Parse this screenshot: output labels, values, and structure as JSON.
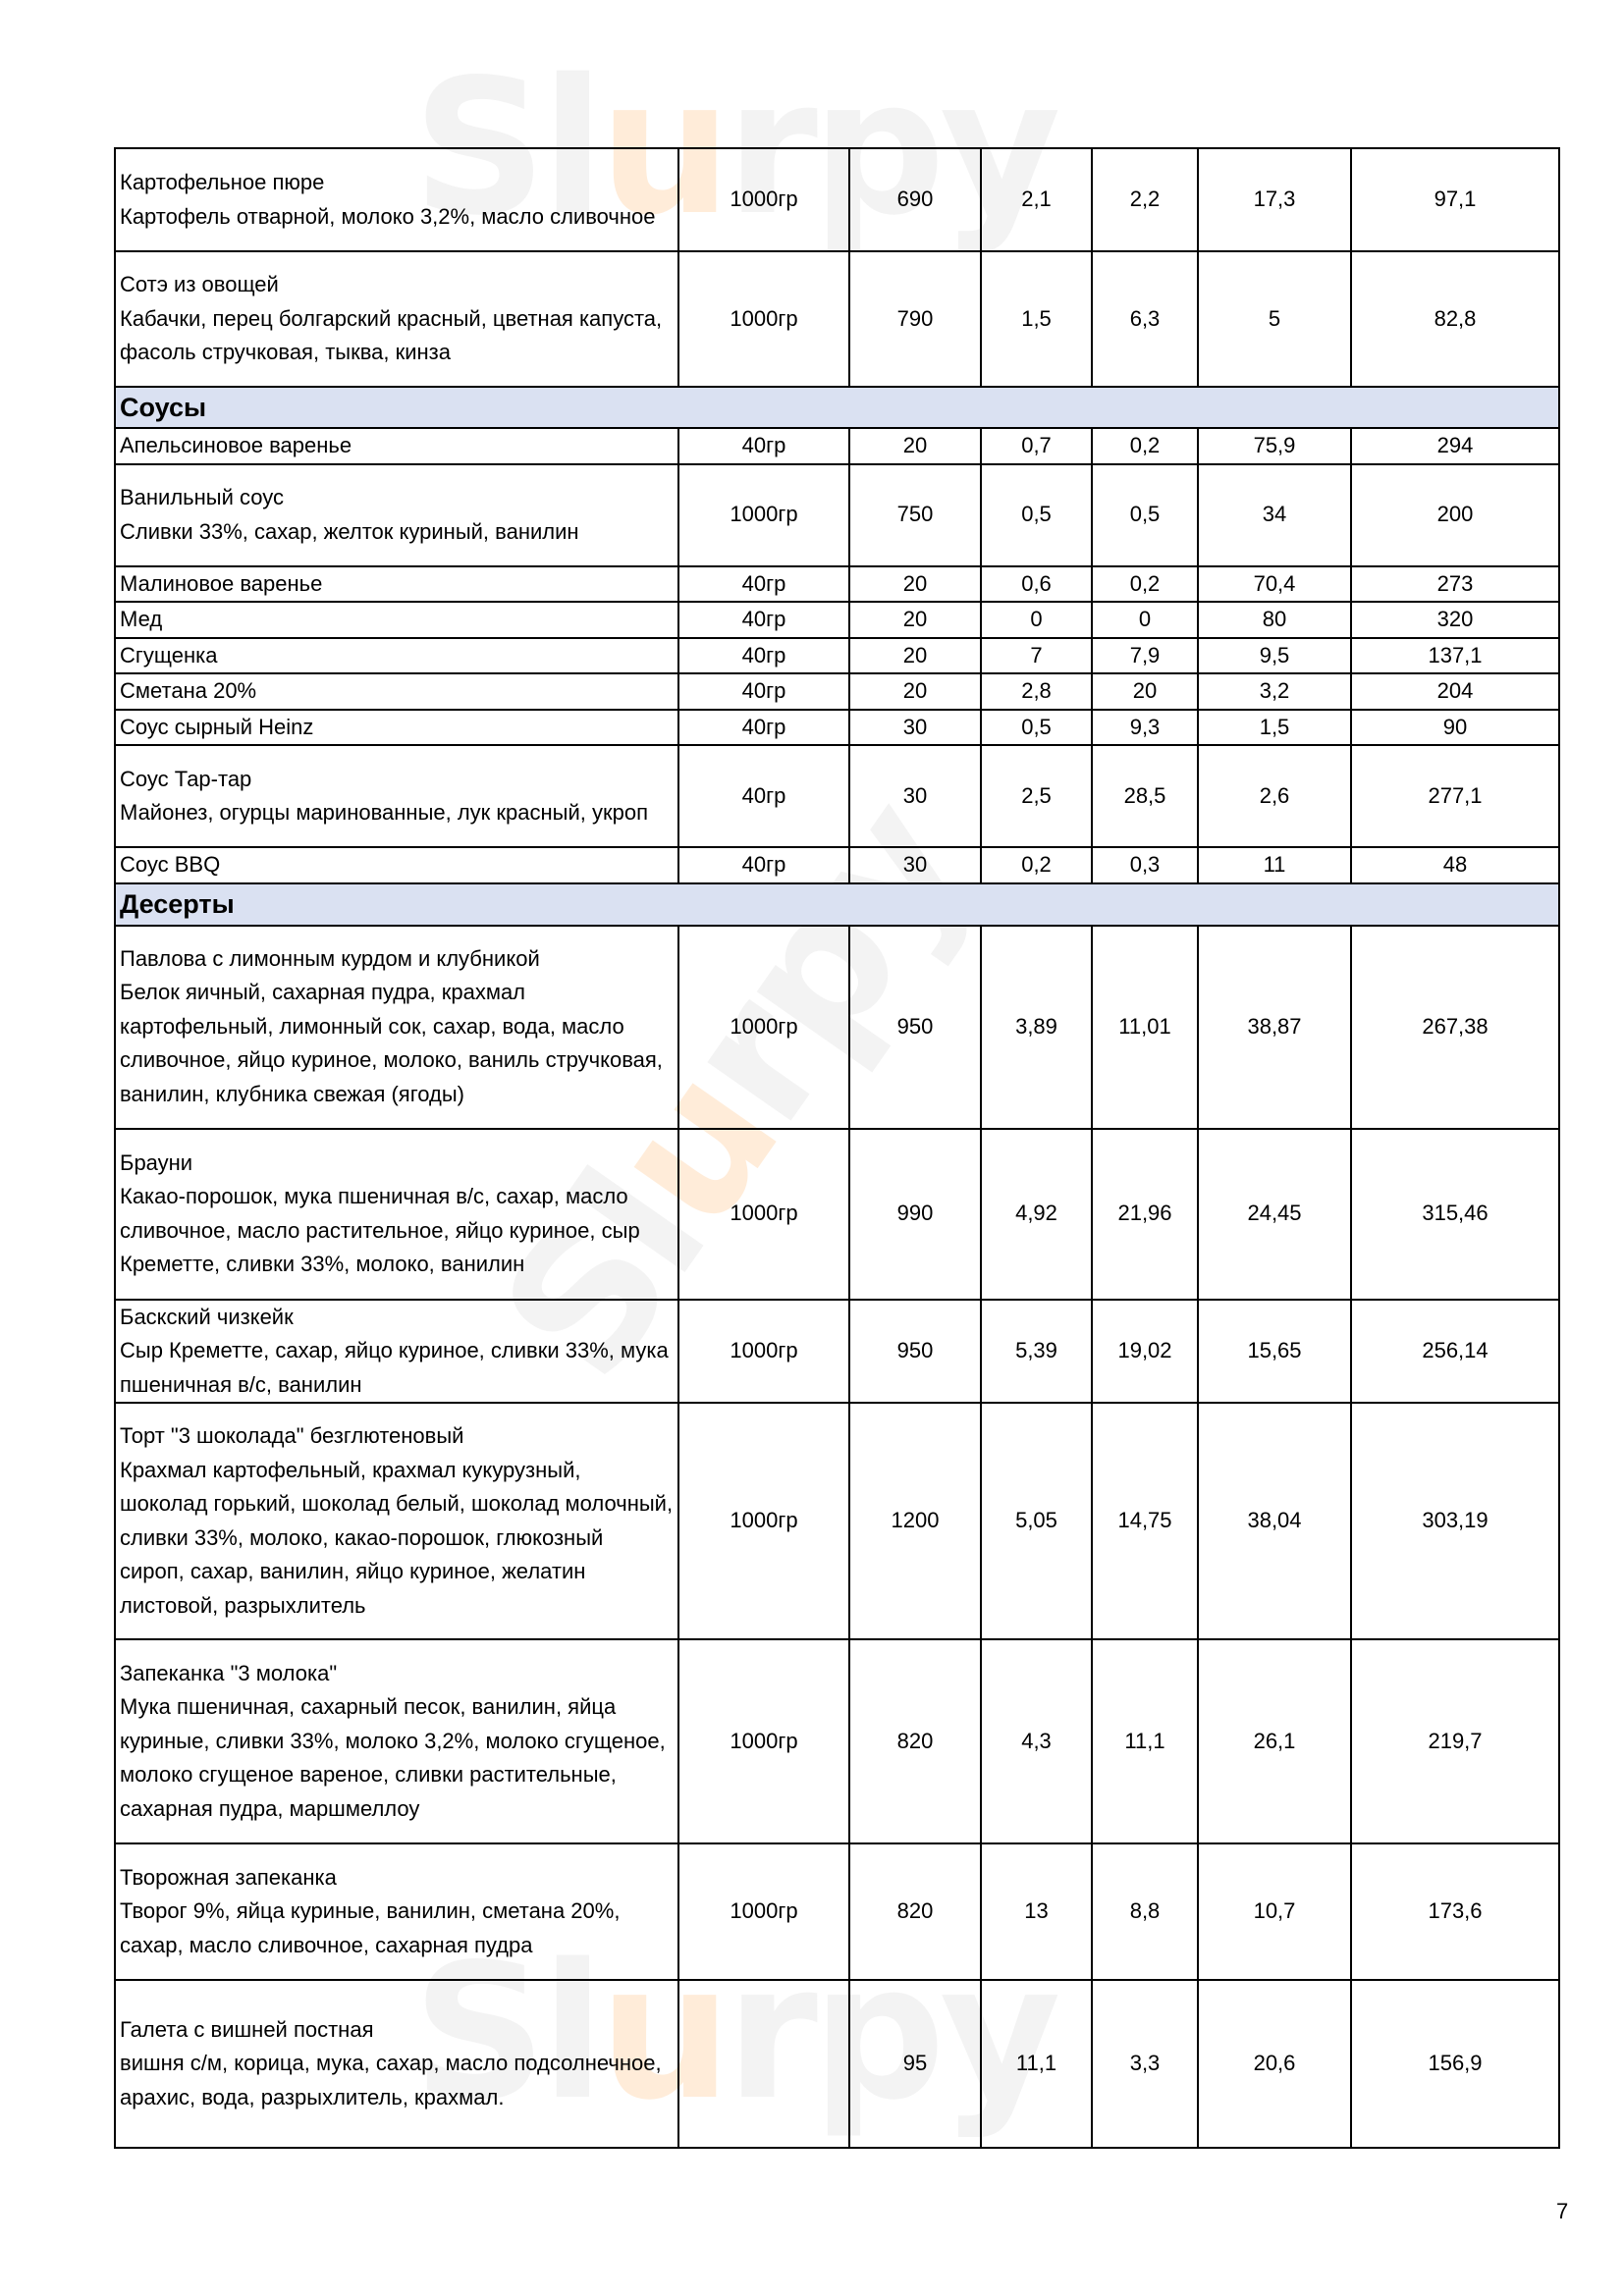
{
  "watermark": "Slurpy",
  "page_number": "7",
  "rows": [
    {
      "type": "item",
      "name": "Картофельное пюре",
      "desc": "Картофель отварной, молоко 3,2%, масло сливочное",
      "portion": "1000гр",
      "weight": "690",
      "protein": "2,1",
      "fat": "2,2",
      "carbs": "17,3",
      "kcal": "97,1"
    },
    {
      "type": "item",
      "name": "Сотэ  из овощей",
      "desc": "Кабачки, перец болгарский красный, цветная капуста, фасоль стручковая, тыква, кинза",
      "portion": "1000гр",
      "weight": "790",
      "protein": "1,5",
      "fat": "6,3",
      "carbs": "5",
      "kcal": "82,8"
    },
    {
      "type": "section",
      "name": "Соусы"
    },
    {
      "type": "item",
      "name": "Апельсиновое варенье",
      "desc": "",
      "portion": "40гр",
      "weight": "20",
      "protein": "0,7",
      "fat": "0,2",
      "carbs": "75,9",
      "kcal": "294"
    },
    {
      "type": "item",
      "name": "Ванильный соус",
      "desc": "Сливки 33%, сахар, желток куриный, ванилин",
      "portion": "1000гр",
      "weight": "750",
      "protein": "0,5",
      "fat": "0,5",
      "carbs": "34",
      "kcal": "200"
    },
    {
      "type": "item",
      "name": "Малиновое варенье",
      "desc": "",
      "portion": "40гр",
      "weight": "20",
      "protein": "0,6",
      "fat": "0,2",
      "carbs": "70,4",
      "kcal": "273"
    },
    {
      "type": "item",
      "name": "Мед",
      "desc": "",
      "portion": "40гр",
      "weight": "20",
      "protein": "0",
      "fat": "0",
      "carbs": "80",
      "kcal": "320"
    },
    {
      "type": "item",
      "name": "Сгущенка",
      "desc": "",
      "portion": "40гр",
      "weight": "20",
      "protein": "7",
      "fat": "7,9",
      "carbs": "9,5",
      "kcal": "137,1"
    },
    {
      "type": "item",
      "name": "Сметана 20%",
      "desc": "",
      "portion": "40гр",
      "weight": "20",
      "protein": "2,8",
      "fat": "20",
      "carbs": "3,2",
      "kcal": "204"
    },
    {
      "type": "item",
      "name": "Соус сырный Heinz",
      "desc": "",
      "portion": "40гр",
      "weight": "30",
      "protein": "0,5",
      "fat": "9,3",
      "carbs": "1,5",
      "kcal": "90"
    },
    {
      "type": "item",
      "name": "Соус Тар-тар",
      "desc": "Майонез, огурцы маринованные, лук красный, укроп",
      "portion": "40гр",
      "weight": "30",
      "protein": "2,5",
      "fat": "28,5",
      "carbs": "2,6",
      "kcal": "277,1"
    },
    {
      "type": "item",
      "name": "Соус BBQ",
      "desc": "",
      "portion": "40гр",
      "weight": "30",
      "protein": "0,2",
      "fat": "0,3",
      "carbs": "11",
      "kcal": "48"
    },
    {
      "type": "section",
      "name": "Десерты"
    },
    {
      "type": "item",
      "name": "Павлова с лимонным курдом и клубникой",
      "desc": "Белок яичный, сахарная пудра, крахмал картофельный, лимонный сок, сахар, вода, масло сливочное, яйцо куриное, молоко, ваниль стручковая, ванилин, клубника свежая (ягоды)",
      "portion": "1000гр",
      "weight": "950",
      "protein": "3,89",
      "fat": "11,01",
      "carbs": "38,87",
      "kcal": "267,38"
    },
    {
      "type": "item",
      "name": "Брауни",
      "desc": "Какао-порошок, мука пшеничная в/с, сахар, масло сливочное, масло растительное, яйцо куриное, сыр Креметте, сливки 33%, молоко, ванилин",
      "portion": "1000гр",
      "weight": "990",
      "protein": "4,92",
      "fat": "21,96",
      "carbs": "24,45",
      "kcal": "315,46"
    },
    {
      "type": "item",
      "name": "Баскский чизкейк",
      "desc": "Сыр Креметте, сахар, яйцо куриное, сливки 33%, мука пшеничная в/с, ванилин",
      "portion": "1000гр",
      "weight": "950",
      "protein": "5,39",
      "fat": "19,02",
      "carbs": "15,65",
      "kcal": "256,14"
    },
    {
      "type": "item",
      "name": "Торт \"3 шоколада\" безглютеновый",
      "desc": "Крахмал картофельный, крахмал кукурузный, шоколад горький, шоколад белый,  шоколад молочный, сливки 33%, молоко, какао-порошок, глюкозный сироп, сахар, ванилин, яйцо куриное, желатин листовой, разрыхлитель",
      "portion": "1000гр",
      "weight": "1200",
      "protein": "5,05",
      "fat": "14,75",
      "carbs": "38,04",
      "kcal": "303,19"
    },
    {
      "type": "item",
      "name": "Запеканка \"3 молока\"",
      "desc": "Мука пшеничная, сахарный песок, ванилин, яйца куриные, сливки 33%, молоко 3,2%, молоко сгущеное, молоко сгущеное вареное, сливки растительные, сахарная пудра, маршмеллоу",
      "portion": "1000гр",
      "weight": "820",
      "protein": "4,3",
      "fat": "11,1",
      "carbs": "26,1",
      "kcal": "219,7"
    },
    {
      "type": "item",
      "name": "Творожная запеканка",
      "desc": "Творог 9%, яйца куриные, ванилин, сметана 20%, сахар, масло сливочное, сахарная пудра",
      "portion": "1000гр",
      "weight": "820",
      "protein": "13",
      "fat": "8,8",
      "carbs": "10,7",
      "kcal": "173,6"
    },
    {
      "type": "item",
      "name": "Галета с вишней постная",
      "desc": "вишня с/м, корица, мука, сахар, масло подсолнечное, арахис, вода, разрыхлитель, крахмал.",
      "portion": "",
      "weight": "95",
      "protein": "11,1",
      "fat": "3,3",
      "carbs": "20,6",
      "kcal": "156,9"
    }
  ]
}
